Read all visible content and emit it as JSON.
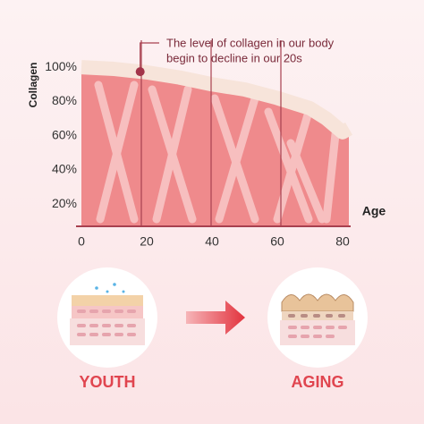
{
  "chart_data": {
    "type": "area",
    "y_label": "Collagen",
    "x_label": "Age",
    "annotation": [
      "The level of collagen in our body",
      "begin to decline in our 20s"
    ],
    "annotation_x": 18,
    "x": [
      0,
      10,
      20,
      30,
      40,
      50,
      60,
      70,
      75,
      80
    ],
    "values": [
      100,
      99,
      97,
      94,
      90,
      87,
      82,
      76,
      70,
      62
    ],
    "color": "#ef8a8c",
    "xlim": [
      0,
      80
    ],
    "xticks": [
      0,
      20,
      40,
      60,
      80
    ],
    "ylim": [
      7,
      110
    ],
    "yticks": [
      {
        "value": 20,
        "label": "20%"
      },
      {
        "value": 40,
        "label": "40%"
      },
      {
        "value": 60,
        "label": "60%"
      },
      {
        "value": 80,
        "label": "80%"
      },
      {
        "value": 100,
        "label": "100%"
      }
    ],
    "panels": [
      "YOUTH",
      "AGING"
    ]
  }
}
